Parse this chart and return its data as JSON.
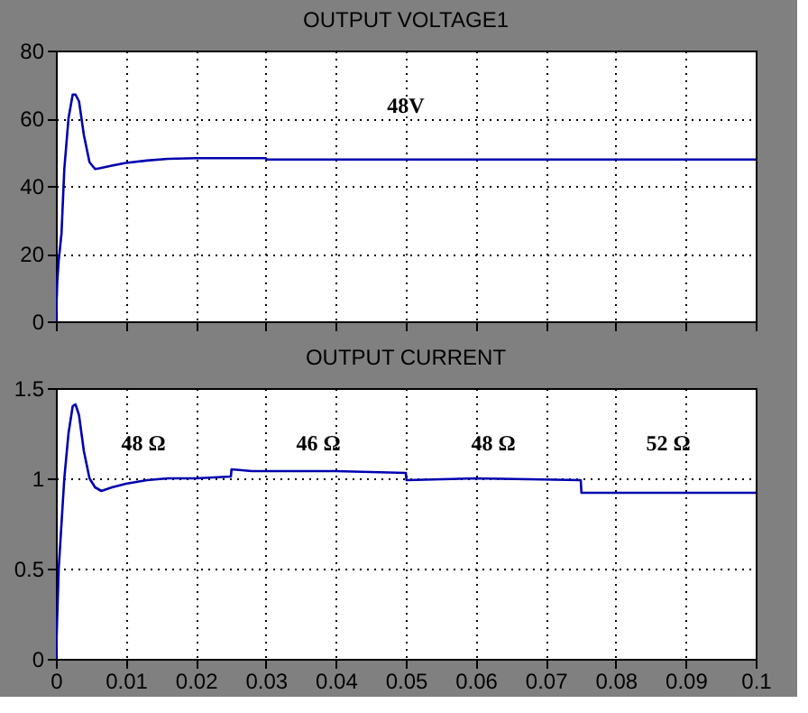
{
  "chart_data": [
    {
      "type": "line",
      "title": "OUTPUT VOLTAGE1",
      "series": [
        {
          "color": "#0000b0",
          "x": [
            0,
            0.0002,
            0.0004,
            0.0008,
            0.0012,
            0.0018,
            0.0024,
            0.0028,
            0.0033,
            0.004,
            0.0048,
            0.0056,
            0.0062,
            0.008,
            0.01,
            0.013,
            0.016,
            0.02,
            0.025,
            0.03,
            0.0301,
            0.05,
            0.075,
            0.1
          ],
          "values": [
            0,
            12,
            18,
            26,
            45,
            60,
            67,
            67,
            65,
            55,
            47,
            45,
            45.2,
            46,
            46.8,
            47.5,
            48,
            48.2,
            48.2,
            48.2,
            47.8,
            47.8,
            47.8,
            47.8
          ]
        }
      ],
      "xlim": [
        0,
        0.1
      ],
      "xticks": [
        0,
        0.01,
        0.02,
        0.03,
        0.04,
        0.05,
        0.06,
        0.07,
        0.08,
        0.09,
        0.1
      ],
      "ylim": [
        0,
        80
      ],
      "yticks": [
        0,
        20,
        40,
        60,
        80
      ],
      "grid": true,
      "tick_labels": "y",
      "annotations": [
        "48V"
      ]
    },
    {
      "type": "line",
      "title": "OUTPUT CURRENT",
      "series": [
        {
          "color": "#0000b0",
          "x": [
            0,
            0.0002,
            0.0004,
            0.0008,
            0.0012,
            0.0018,
            0.0024,
            0.0028,
            0.0033,
            0.004,
            0.0048,
            0.0056,
            0.0065,
            0.008,
            0.01,
            0.013,
            0.016,
            0.02,
            0.025,
            0.0251,
            0.028,
            0.04,
            0.05,
            0.0501,
            0.06,
            0.075,
            0.0751,
            0.1
          ],
          "values": [
            0,
            0.25,
            0.5,
            0.75,
            1.0,
            1.25,
            1.4,
            1.41,
            1.35,
            1.15,
            1.0,
            0.95,
            0.93,
            0.95,
            0.97,
            0.99,
            1.0,
            1.0,
            1.01,
            1.05,
            1.04,
            1.04,
            1.03,
            0.99,
            1.0,
            0.99,
            0.92,
            0.92
          ]
        }
      ],
      "xlim": [
        0,
        0.1
      ],
      "xticks": [
        0,
        0.01,
        0.02,
        0.03,
        0.04,
        0.05,
        0.06,
        0.07,
        0.08,
        0.09,
        0.1
      ],
      "ylim": [
        0,
        1.5
      ],
      "yticks": [
        0,
        0.5,
        1,
        1.5
      ],
      "grid": true,
      "annotations": [
        "48 Ω",
        "46 Ω",
        "48 Ω",
        "52 Ω"
      ]
    }
  ]
}
